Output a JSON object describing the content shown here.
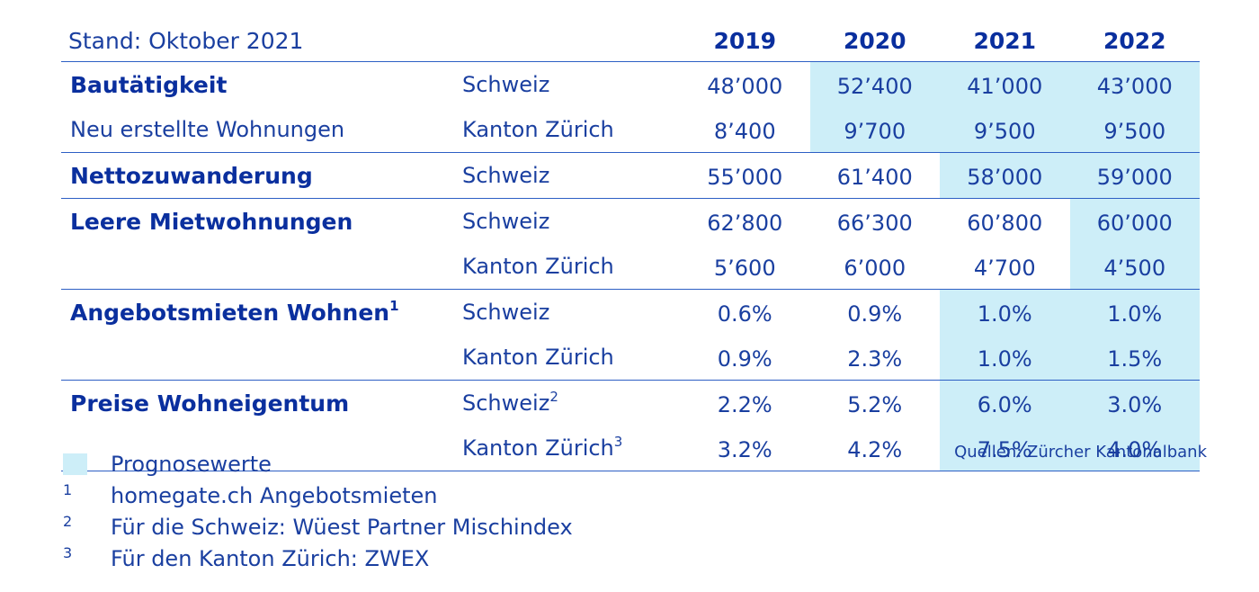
{
  "header": {
    "stand": "Stand: Oktober 2021",
    "years": [
      "2019",
      "2020",
      "2021",
      "2022"
    ]
  },
  "rows": [
    {
      "cat": "Bautätigkeit",
      "cat_bold": true,
      "region": "Schweiz",
      "region_sup": "",
      "values": [
        "48’000",
        "52’400",
        "41’000",
        "43’000"
      ],
      "forecast": [
        false,
        true,
        true,
        true
      ],
      "sep": false
    },
    {
      "cat": "Neu erstellte Wohnungen",
      "cat_bold": false,
      "region": "Kanton Zürich",
      "region_sup": "",
      "values": [
        "8’400",
        "9’700",
        "9’500",
        "9’500"
      ],
      "forecast": [
        false,
        true,
        true,
        true
      ],
      "sep": true
    },
    {
      "cat": "Nettozuwanderung",
      "cat_bold": true,
      "region": "Schweiz",
      "region_sup": "",
      "values": [
        "55’000",
        "61’400",
        "58’000",
        "59’000"
      ],
      "forecast": [
        false,
        false,
        true,
        true
      ],
      "sep": true
    },
    {
      "cat": "Leere Mietwohnungen",
      "cat_bold": true,
      "region": "Schweiz",
      "region_sup": "",
      "values": [
        "62’800",
        "66’300",
        "60’800",
        "60’000"
      ],
      "forecast": [
        false,
        false,
        false,
        true
      ],
      "sep": false
    },
    {
      "cat": "",
      "cat_bold": false,
      "region": "Kanton Zürich",
      "region_sup": "",
      "values": [
        "5’600",
        "6’000",
        "4’700",
        "4’500"
      ],
      "forecast": [
        false,
        false,
        false,
        true
      ],
      "sep": true
    },
    {
      "cat": "Angebotsmieten Wohnen",
      "cat_sup": "1",
      "cat_bold": true,
      "region": "Schweiz",
      "region_sup": "",
      "values": [
        "0.6%",
        "0.9%",
        "1.0%",
        "1.0%"
      ],
      "forecast": [
        false,
        false,
        true,
        true
      ],
      "sep": false
    },
    {
      "cat": "",
      "cat_bold": false,
      "region": "Kanton Zürich",
      "region_sup": "",
      "values": [
        "0.9%",
        "2.3%",
        "1.0%",
        "1.5%"
      ],
      "forecast": [
        false,
        false,
        true,
        true
      ],
      "sep": true
    },
    {
      "cat": "Preise Wohneigentum",
      "cat_bold": true,
      "region": "Schweiz",
      "region_sup": "2",
      "values": [
        "2.2%",
        "5.2%",
        "6.0%",
        "3.0%"
      ],
      "forecast": [
        false,
        false,
        true,
        true
      ],
      "sep": false
    },
    {
      "cat": "",
      "cat_bold": false,
      "region": "Kanton Zürich",
      "region_sup": "3",
      "values": [
        "3.2%",
        "4.2%",
        "7.5%",
        "4.0%"
      ],
      "forecast": [
        false,
        false,
        true,
        true
      ],
      "sep": true
    }
  ],
  "legend": {
    "forecast_label": "Prognosewerte",
    "notes": [
      {
        "num": "1",
        "text": "homegate.ch Angebotsmieten"
      },
      {
        "num": "2",
        "text": "Für die Schweiz: Wüest Partner Mischindex"
      },
      {
        "num": "3",
        "text": "Für den Kanton Zürich: ZWEX"
      }
    ]
  },
  "sources": "Quellen: Zürcher Kantonalbank",
  "colors": {
    "text": "#1a3fa0",
    "forecast_bg": "#cdeef8",
    "rule": "#2d5fc4"
  }
}
